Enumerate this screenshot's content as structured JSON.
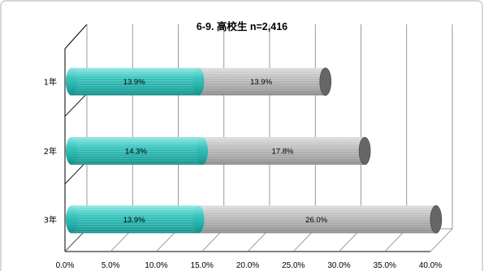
{
  "chart_data": {
    "type": "bar",
    "orientation": "horizontal",
    "stacked": true,
    "style": "3d-cylinder",
    "title": "6-9. 高校生 n=2,416",
    "categories": [
      "1年",
      "2年",
      "3年"
    ],
    "series": [
      {
        "values": [
          13.9,
          14.3,
          13.9
        ],
        "labels": [
          "13.9%",
          "14.3%",
          "13.9%"
        ],
        "color": "#2fbcb5"
      },
      {
        "values": [
          13.9,
          17.8,
          26.0
        ],
        "labels": [
          "13.9%",
          "17.8%",
          "26.0%"
        ],
        "color": "#b3b3b3"
      }
    ],
    "xlim": [
      0,
      40
    ],
    "x_ticks": [
      "0.0%",
      "5.0%",
      "10.0%",
      "15.0%",
      "20.0%",
      "25.0%",
      "30.0%",
      "35.0%",
      "40.0%"
    ],
    "grid": true,
    "legend": "none"
  },
  "colors": {
    "series_1": "#2fbcb5",
    "series_2": "#b3b3b3",
    "series_2_end": "#666666",
    "gridline": "#7f7f7f",
    "frame_border": "#bfbfbf"
  }
}
